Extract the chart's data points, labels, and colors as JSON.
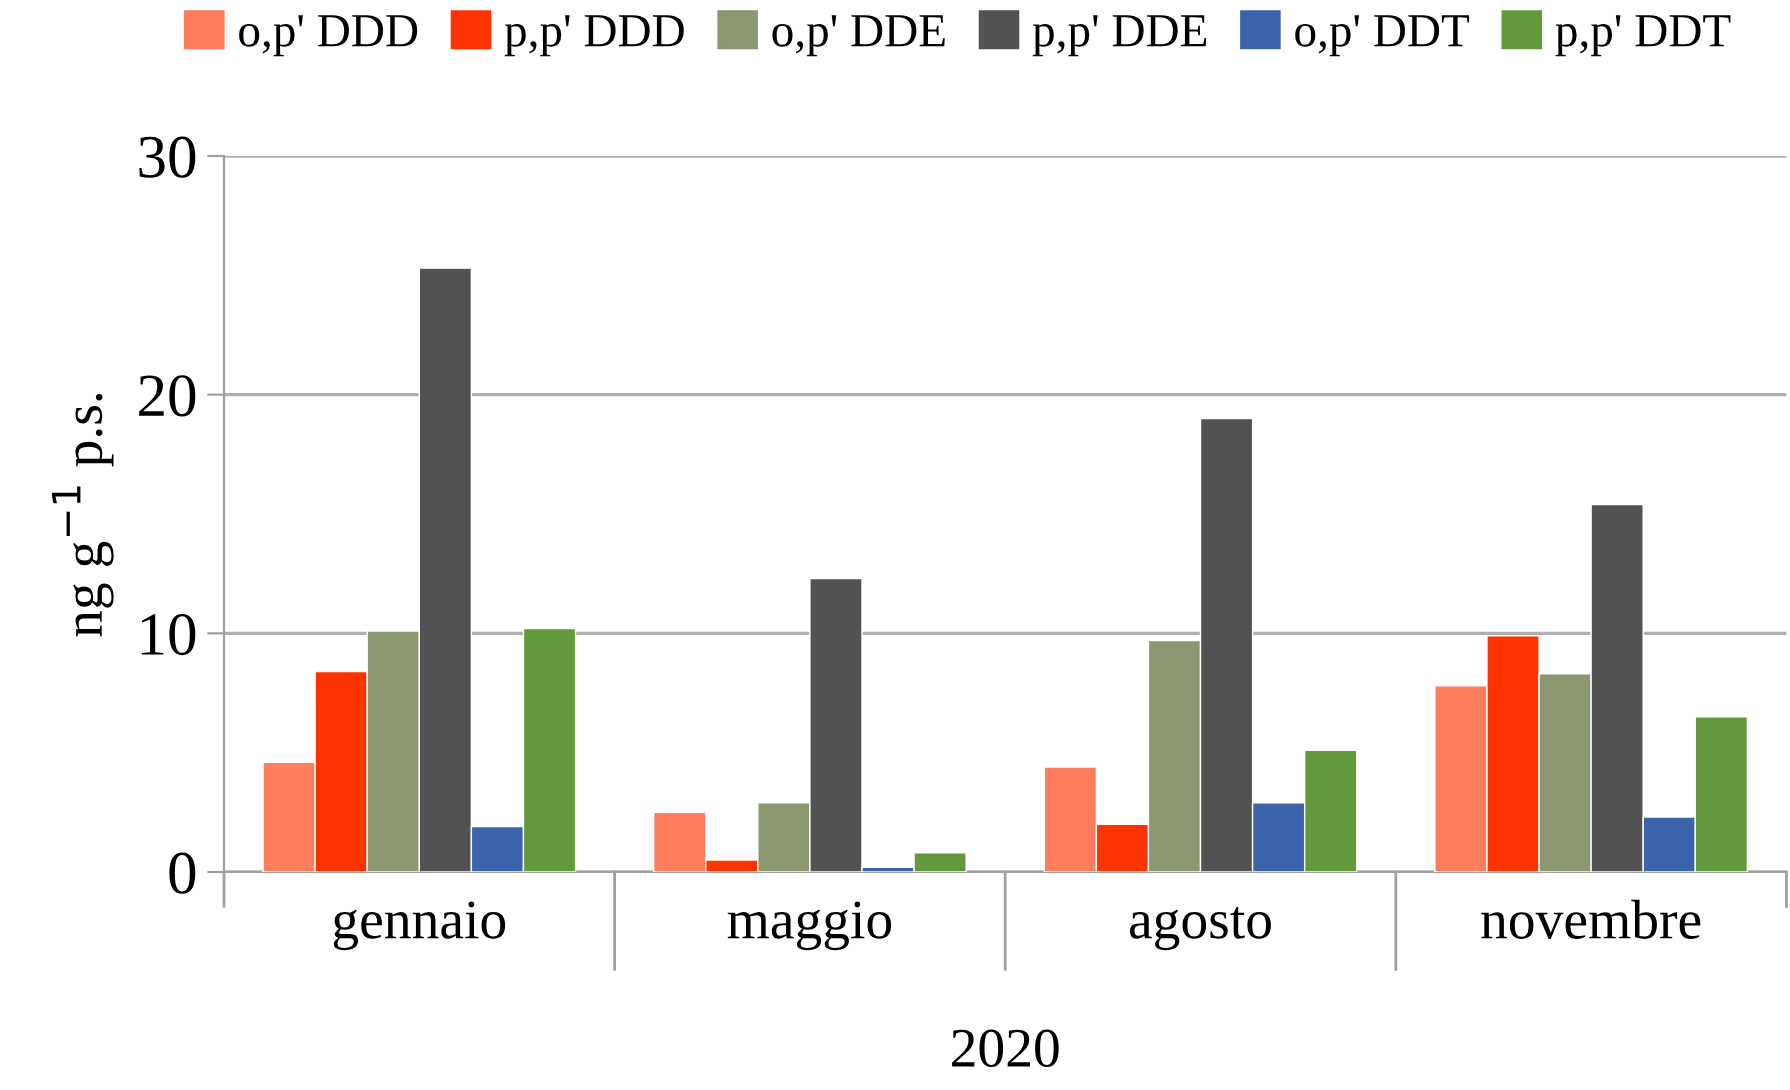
{
  "chart_data": {
    "type": "bar",
    "categories": [
      "gennaio",
      "maggio",
      "agosto",
      "novembre"
    ],
    "xlabel": "2020",
    "ylabel": "ng g$^{−1}$ p.s.",
    "series": [
      {
        "name": "o,p' DDD",
        "color": "#ff7c5c",
        "values": [
          4.6,
          2.5,
          4.4,
          7.8
        ]
      },
      {
        "name": "p,p' DDD",
        "color": "#ff3300",
        "values": [
          8.4,
          0.5,
          2.0,
          9.9
        ]
      },
      {
        "name": "o,p' DDE",
        "color": "#8b976f",
        "values": [
          10.1,
          2.9,
          9.7,
          8.3
        ]
      },
      {
        "name": "p,p' DDE",
        "color": "#525252",
        "values": [
          25.3,
          12.3,
          19.0,
          15.4
        ]
      },
      {
        "name": "o,p' DDT",
        "color": "#3b64ad",
        "values": [
          1.9,
          0.2,
          2.9,
          2.3
        ]
      },
      {
        "name": "p,p' DDT",
        "color": "#63993d",
        "values": [
          10.2,
          0.8,
          5.1,
          6.5
        ]
      }
    ],
    "ylim": [
      0,
      30
    ],
    "yticks": [
      0,
      10,
      20,
      30
    ],
    "grid": "y",
    "legend": "top"
  }
}
